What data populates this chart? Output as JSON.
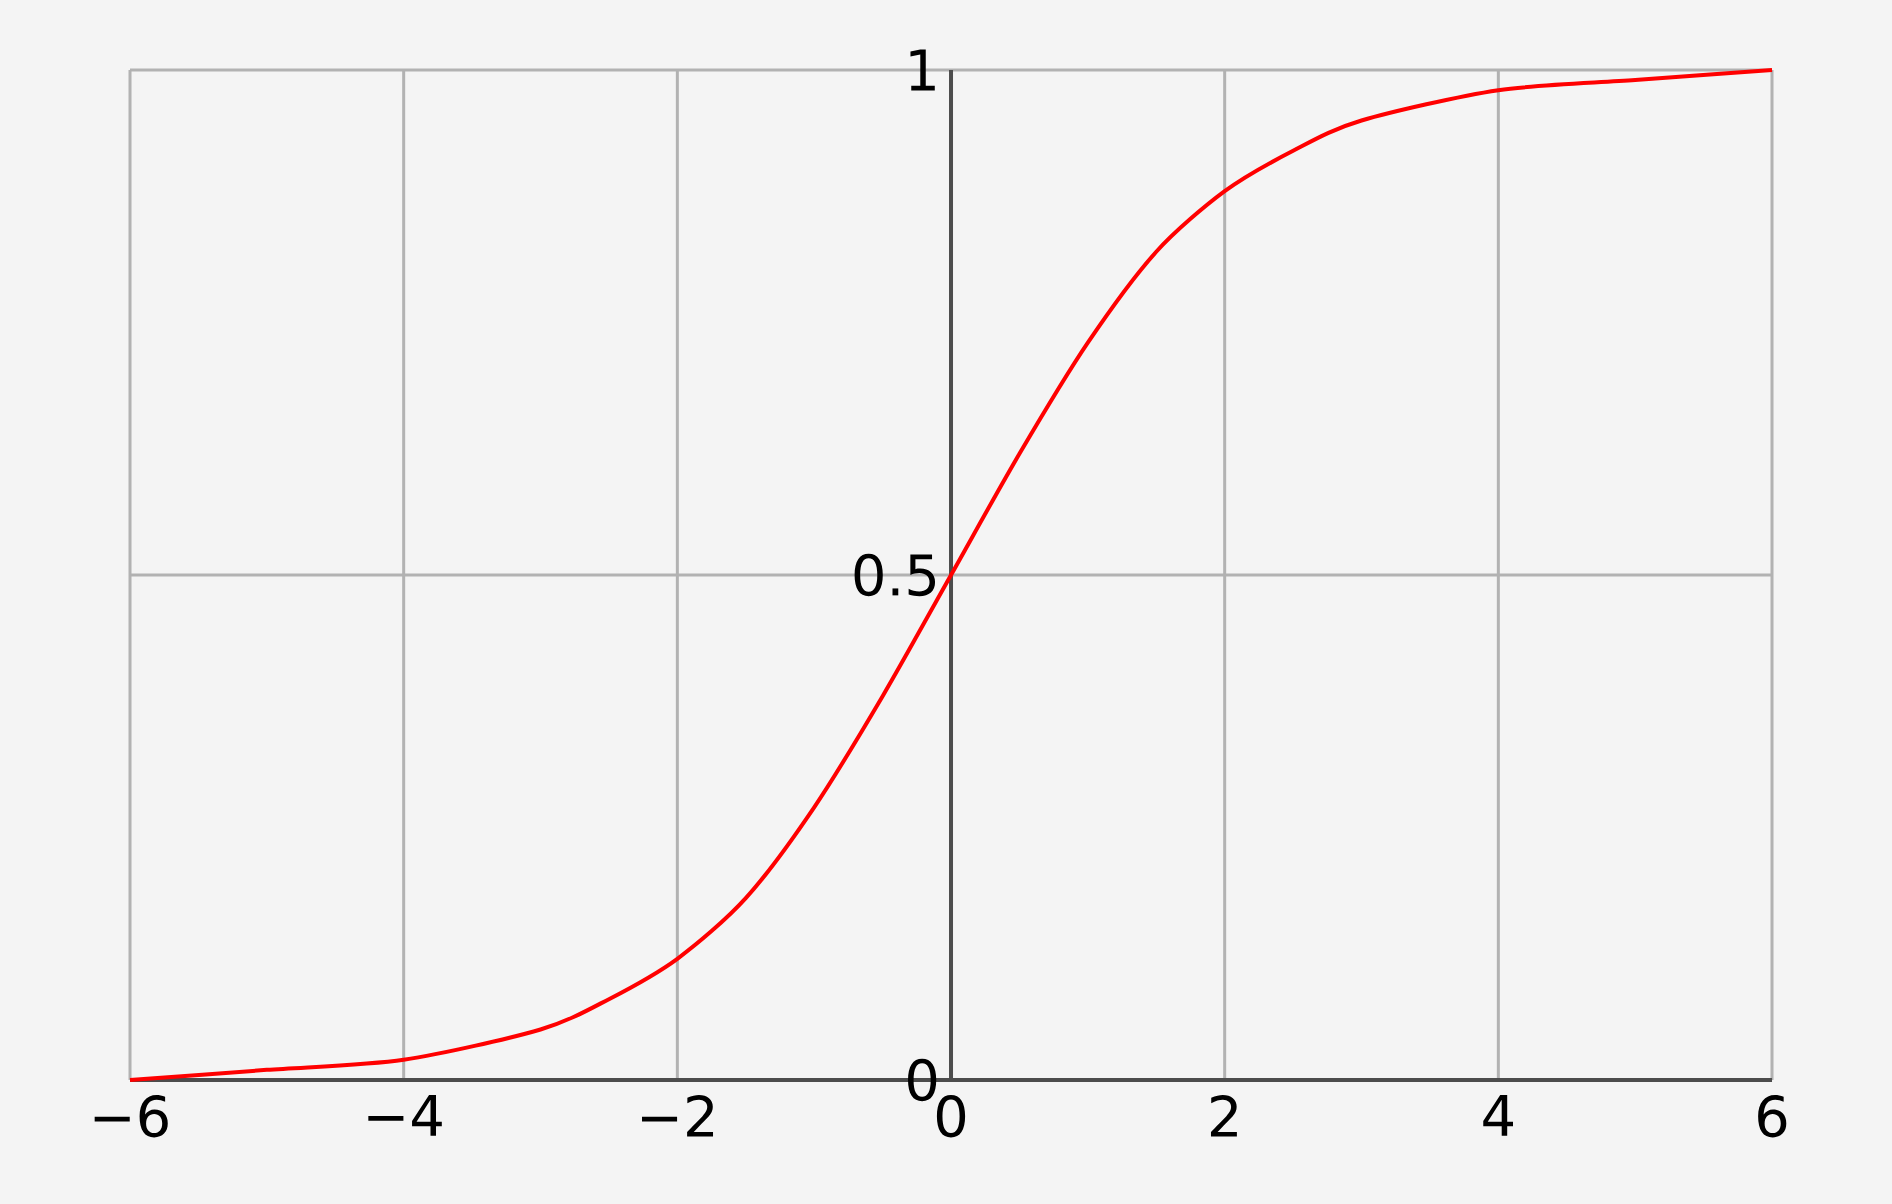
{
  "chart_data": {
    "type": "line",
    "x": [
      -6,
      -5,
      -4,
      -3,
      -2.5,
      -2,
      -1.5,
      -1,
      -0.5,
      0,
      0.5,
      1,
      1.5,
      2,
      2.5,
      3,
      4,
      5,
      6
    ],
    "series": [
      {
        "color": "#ff0000",
        "values": [
          0.0,
          0.01,
          0.02,
          0.05,
          0.08,
          0.12,
          0.18,
          0.27,
          0.38,
          0.5,
          0.62,
          0.73,
          0.82,
          0.88,
          0.92,
          0.95,
          0.98,
          0.99,
          1.0
        ]
      }
    ],
    "xlim": [
      -6,
      6
    ],
    "ylim": [
      0,
      1
    ],
    "xticks": [
      {
        "value": -6,
        "label": "−6"
      },
      {
        "value": -4,
        "label": "−4"
      },
      {
        "value": -2,
        "label": "−2"
      },
      0,
      2,
      4,
      6
    ],
    "yticks": [
      0,
      0.5,
      1
    ],
    "grid": true,
    "marker": "none",
    "line_style": "solid"
  }
}
